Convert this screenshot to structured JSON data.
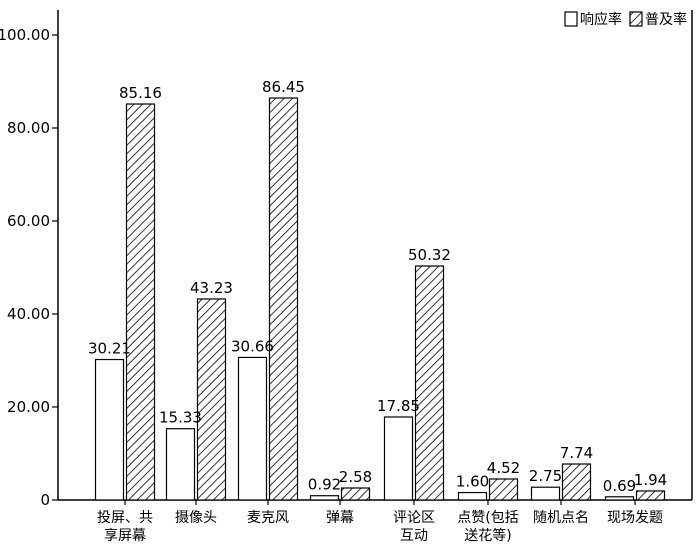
{
  "chart_data": {
    "type": "bar",
    "title": "",
    "xlabel": "",
    "ylabel": "",
    "ylim": [
      0,
      100
    ],
    "y_ticks": [
      "100.00",
      "80.00",
      "60.00",
      "40.00",
      "20.00",
      "0"
    ],
    "grid": false,
    "legend_position": "top-right",
    "categories": [
      [
        "投屏、共",
        "享屏幕"
      ],
      [
        "摄像头"
      ],
      [
        "麦克风"
      ],
      [
        "弹幕"
      ],
      [
        "评论区",
        "互动"
      ],
      [
        "点赞(包括",
        "送花等)"
      ],
      [
        "随机点名"
      ],
      [
        "现场发题"
      ]
    ],
    "series": [
      {
        "name": "响应率",
        "pattern": "solid",
        "fill": "#ffffff",
        "values": [
          30.21,
          15.33,
          30.66,
          0.92,
          17.85,
          1.6,
          2.75,
          0.69
        ],
        "labels": [
          "30.21",
          "15.33",
          "30.66",
          "0.92",
          "17.85",
          "1.60",
          "2.75",
          "0.69"
        ]
      },
      {
        "name": "普及率",
        "pattern": "diagonal-hatch",
        "fill": "#ffffff",
        "values": [
          85.16,
          43.23,
          86.45,
          2.58,
          50.32,
          4.52,
          7.74,
          1.94
        ],
        "labels": [
          "85.16",
          "43.23",
          "86.45",
          "2.58",
          "50.32",
          "4.52",
          "7.74",
          "1.94"
        ]
      }
    ]
  }
}
